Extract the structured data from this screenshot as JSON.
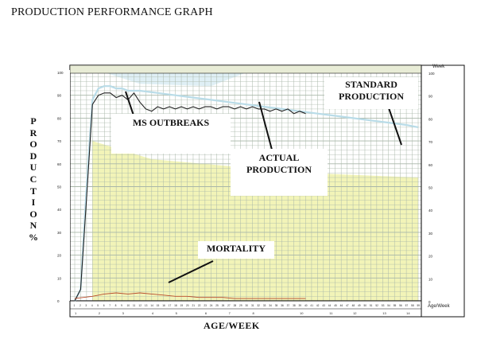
{
  "page_title": "PRODUCTION PERFORMANCE GRAPH",
  "colors": {
    "band_fill": "#f2f4b8",
    "grid_line": "#a9b7a9",
    "actual_line": "#222222",
    "standard_line": "#b9dce8",
    "mortality_line": "#b84a2a",
    "frame": "#111111"
  },
  "chart_data": {
    "type": "line",
    "title": "PRODUCTION PERFORMANCE GRAPH",
    "ylabel": "PRODUCTION %",
    "xlabel": "AGE/WEEK",
    "ylim": [
      0,
      100
    ],
    "y_ticks": [
      "100",
      "90",
      "80",
      "70",
      "60",
      "50",
      "40",
      "30",
      "20",
      "10",
      "0"
    ],
    "right_axis_title": "Week",
    "right_axis_ticks": [
      "100",
      "90",
      "80",
      "70",
      "60",
      "50",
      "40",
      "30",
      "20",
      "10",
      "0"
    ],
    "bottom_axis_title": "Age/Week",
    "x_week_ticks": [
      "1",
      "2",
      "3",
      "4",
      "5",
      "6",
      "7",
      "8",
      "9",
      "10",
      "11",
      "12",
      "13",
      "14",
      "15",
      "16",
      "17",
      "18",
      "19",
      "20",
      "21",
      "22",
      "23",
      "24",
      "25",
      "26",
      "27",
      "28",
      "29",
      "30",
      "31",
      "32",
      "33",
      "34",
      "35",
      "36",
      "37",
      "38",
      "39",
      "40",
      "41",
      "42",
      "43",
      "44",
      "45",
      "46",
      "47",
      "48",
      "49",
      "50",
      "51",
      "52",
      "53",
      "54",
      "55",
      "56",
      "57",
      "58",
      "59"
    ],
    "x_month_ticks": [
      "1",
      "2",
      "3",
      "4",
      "5",
      "6",
      "7",
      "8",
      "10",
      "11",
      "12",
      "13",
      "14"
    ],
    "grid": true,
    "series": [
      {
        "name": "ACTUAL PRODUCTION",
        "points": [
          [
            1,
            0
          ],
          [
            2,
            5
          ],
          [
            3,
            45
          ],
          [
            4,
            86
          ],
          [
            5,
            90
          ],
          [
            6,
            91
          ],
          [
            7,
            91
          ],
          [
            8,
            89
          ],
          [
            9,
            90
          ],
          [
            10,
            88
          ],
          [
            11,
            91
          ],
          [
            12,
            87
          ],
          [
            13,
            84
          ],
          [
            14,
            83
          ],
          [
            15,
            85
          ],
          [
            16,
            84
          ],
          [
            17,
            85
          ],
          [
            18,
            84
          ],
          [
            19,
            85
          ],
          [
            20,
            84
          ],
          [
            21,
            85
          ],
          [
            22,
            84
          ],
          [
            23,
            85
          ],
          [
            24,
            85
          ],
          [
            25,
            84
          ],
          [
            26,
            85
          ],
          [
            27,
            85
          ],
          [
            28,
            84
          ],
          [
            29,
            85
          ],
          [
            30,
            84
          ],
          [
            31,
            85
          ],
          [
            32,
            84
          ],
          [
            33,
            84
          ],
          [
            34,
            83
          ],
          [
            35,
            84
          ],
          [
            36,
            83
          ],
          [
            37,
            84
          ],
          [
            38,
            82
          ],
          [
            39,
            83
          ],
          [
            40,
            82
          ]
        ]
      },
      {
        "name": "STANDARD PRODUCTION",
        "points": [
          [
            1,
            0
          ],
          [
            2,
            5
          ],
          [
            3,
            50
          ],
          [
            4,
            88
          ],
          [
            5,
            93
          ],
          [
            6,
            94
          ],
          [
            7,
            94
          ],
          [
            8,
            93
          ],
          [
            9,
            93
          ],
          [
            10,
            92
          ],
          [
            12,
            92
          ],
          [
            15,
            91
          ],
          [
            18,
            90
          ],
          [
            21,
            89
          ],
          [
            24,
            88
          ],
          [
            27,
            87
          ],
          [
            30,
            86
          ],
          [
            33,
            85
          ],
          [
            36,
            84
          ],
          [
            39,
            83
          ],
          [
            42,
            82
          ],
          [
            45,
            81
          ],
          [
            48,
            80
          ],
          [
            51,
            79
          ],
          [
            54,
            78
          ],
          [
            57,
            77
          ],
          [
            59,
            76
          ]
        ]
      },
      {
        "name": "MORTALITY",
        "points": [
          [
            1,
            1
          ],
          [
            4,
            2
          ],
          [
            6,
            3
          ],
          [
            8,
            3.5
          ],
          [
            10,
            3
          ],
          [
            12,
            3.5
          ],
          [
            14,
            3
          ],
          [
            16,
            2.5
          ],
          [
            18,
            2
          ],
          [
            20,
            2
          ],
          [
            22,
            1.5
          ],
          [
            24,
            1.5
          ],
          [
            26,
            1.5
          ],
          [
            28,
            1
          ],
          [
            30,
            1
          ],
          [
            32,
            1
          ],
          [
            34,
            1
          ],
          [
            36,
            1
          ],
          [
            38,
            1
          ],
          [
            40,
            1
          ]
        ]
      }
    ],
    "annotations": [
      "MS OUTBREAKS",
      "ACTUAL PRODUCTION",
      "STANDARD PRODUCTION",
      "MORTALITY"
    ]
  }
}
